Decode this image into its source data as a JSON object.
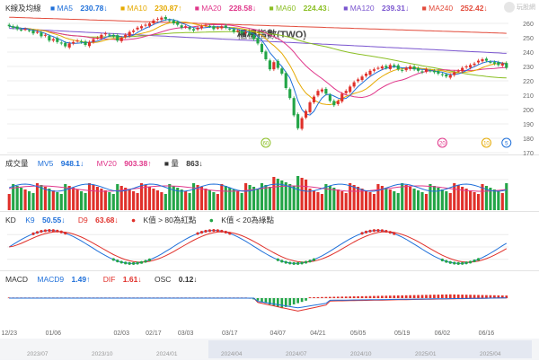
{
  "kline": {
    "title": "K線及均線",
    "ma": [
      {
        "label": "MA5",
        "value": "230.78↓",
        "color": "#1e6fd9"
      },
      {
        "label": "MA10",
        "value": "230.87↑",
        "color": "#e5a900"
      },
      {
        "label": "MA20",
        "value": "228.58↓",
        "color": "#e0368a"
      },
      {
        "label": "MA60",
        "value": "224.43↓",
        "color": "#8bbf24"
      },
      {
        "label": "MA120",
        "value": "239.31↓",
        "color": "#7a55cf"
      },
      {
        "label": "MA240",
        "value": "252.42↓",
        "color": "#e24a3a"
      }
    ],
    "watermark": "櫃檯指數(TWO)",
    "y_ticks": [
      "260",
      "250",
      "240",
      "230",
      "220",
      "210",
      "200",
      "190",
      "180",
      "170"
    ],
    "markers": [
      {
        "text": "60",
        "color": "#8bbf24",
        "i": 64
      },
      {
        "text": "20",
        "color": "#e0368a",
        "i": 108
      },
      {
        "text": "10",
        "color": "#e5a900",
        "i": 119
      },
      {
        "text": "5",
        "color": "#1e6fd9",
        "i": 124
      }
    ]
  },
  "volume": {
    "title": "成交量",
    "mv5_label": "MV5",
    "mv5_value": "948.1↓",
    "mv20_label": "MV20",
    "mv20_value": "903.38↑",
    "vol_label": "量",
    "vol_value": "863↓"
  },
  "kd": {
    "title": "KD",
    "k_label": "K9",
    "k_value": "50.55↓",
    "d_label": "D9",
    "d_value": "63.68↓",
    "note_red": "K值 > 80為紅點",
    "note_green": "K值 < 20為綠點"
  },
  "macd": {
    "title": "MACD",
    "m_label": "MACD9",
    "m_value": "1.49↑",
    "dif_label": "DIF",
    "dif_value": "1.61↓",
    "osc_label": "OSC",
    "osc_value": "0.12↓"
  },
  "x_axis": {
    "labels": [
      "12/23",
      "01/06",
      "02/03",
      "02/17",
      "03/03",
      "03/17",
      "04/07",
      "04/21",
      "05/05",
      "05/19",
      "06/02",
      "06/16"
    ],
    "nav_labels": [
      "2023/07",
      "2023/10",
      "2024/01",
      "2024/04",
      "2024/07",
      "2024/10",
      "2025/01",
      "2025/04"
    ]
  },
  "logo_text": "玩股網",
  "colors": {
    "up": "#e0302a",
    "down": "#23a547",
    "grid": "#ececec"
  },
  "chart_data": {
    "type": "candlestick",
    "ylim": [
      170,
      265
    ],
    "close": [
      258,
      257,
      256,
      255.5,
      256,
      255,
      253,
      254,
      251,
      252,
      248,
      249,
      247,
      246,
      244,
      246,
      247,
      248,
      247,
      245,
      247,
      249,
      250,
      252,
      253,
      252,
      251,
      248,
      250,
      252,
      254,
      255,
      257,
      258,
      259,
      260,
      262,
      263,
      264,
      263,
      262,
      260,
      259,
      257,
      258,
      256,
      255,
      257,
      258,
      259,
      258,
      256,
      257,
      258,
      257,
      256,
      254,
      255,
      253,
      254,
      252,
      249,
      246,
      240,
      235,
      228,
      233,
      229,
      225,
      215,
      208,
      196,
      187,
      194,
      199,
      205,
      209,
      213,
      214,
      211,
      206,
      203,
      206,
      211,
      213,
      216,
      219,
      221,
      223,
      225,
      227,
      228,
      229,
      230,
      229,
      231,
      230,
      228,
      227,
      229,
      230,
      228,
      227,
      226,
      228,
      227,
      226,
      225,
      224,
      223,
      224,
      226,
      227,
      229,
      230,
      231,
      232,
      234,
      235,
      234,
      233,
      232,
      231,
      232,
      229
    ]
  }
}
